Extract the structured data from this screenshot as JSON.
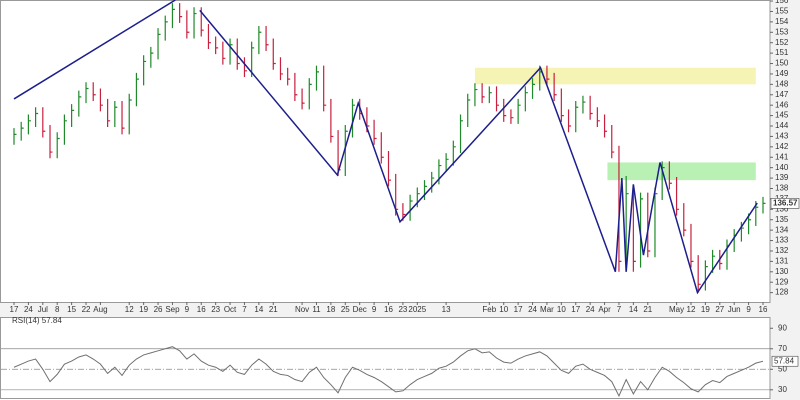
{
  "chart_data": [
    {
      "type": "ohlc",
      "categories": [
        "17",
        null,
        "24",
        null,
        "Jul",
        null,
        "8",
        null,
        "15",
        null,
        "22",
        null,
        "Aug",
        null,
        null,
        null,
        "12",
        null,
        "19",
        null,
        "26",
        null,
        "Sep",
        null,
        "9",
        null,
        "16",
        null,
        "23",
        null,
        "Oct",
        null,
        "7",
        null,
        "14",
        null,
        "21",
        null,
        null,
        null,
        "Nov",
        null,
        "11",
        null,
        "18",
        null,
        "25",
        null,
        "Dec",
        null,
        "9",
        null,
        "16",
        null,
        "23",
        null,
        "2025",
        null,
        null,
        null,
        "13",
        null,
        null,
        null,
        null,
        null,
        "Feb",
        null,
        "10",
        null,
        "17",
        null,
        "24",
        null,
        "Mar",
        null,
        "10",
        null,
        "17",
        null,
        "24",
        null,
        "Apr",
        null,
        "7",
        null,
        "14",
        null,
        "21",
        null,
        null,
        null,
        "May",
        null,
        "12",
        null,
        "19",
        null,
        "27",
        null,
        "Jun",
        null,
        "9",
        null,
        "16"
      ],
      "high": [
        143.8,
        144.4,
        145.1,
        145.8,
        145.8,
        144.1,
        143.4,
        145.1,
        146.1,
        147.4,
        148.2,
        148.2,
        147.6,
        146.6,
        146.4,
        146.4,
        147.1,
        149.1,
        150.8,
        151.6,
        153.4,
        154.6,
        155.8,
        155.8,
        155.1,
        155.4,
        155.4,
        153.8,
        152.6,
        152.1,
        152.4,
        152.4,
        150.6,
        152.1,
        153.6,
        153.6,
        152.4,
        150.6,
        149.6,
        149.1,
        147.6,
        148.6,
        149.8,
        149.8,
        146.6,
        143.6,
        144.1,
        146.6,
        146.6,
        145.8,
        144.6,
        143.4,
        141.6,
        139.4,
        136.6,
        137.4,
        138.1,
        138.8,
        139.6,
        140.8,
        141.4,
        142.6,
        145.1,
        147.1,
        148.1,
        148.1,
        147.8,
        147.8,
        146.6,
        145.6,
        146.6,
        147.8,
        148.6,
        149.8,
        149.8,
        149.1,
        147.6,
        145.6,
        146.4,
        146.9,
        146.9,
        145.8,
        145.1,
        144.1,
        142.1,
        139.2,
        138.1,
        137.6,
        137.6,
        138.1,
        140.6,
        140.6,
        139.1,
        136.6,
        134.6,
        131.6,
        131.1,
        132.1,
        132.1,
        133.1,
        134.1,
        134.8,
        135.6,
        136.8,
        137.2
      ],
      "low": [
        142.2,
        142.6,
        143.2,
        143.9,
        142.9,
        140.9,
        140.9,
        142.2,
        143.9,
        144.9,
        146.2,
        146.4,
        145.4,
        143.9,
        143.9,
        143.2,
        143.2,
        145.9,
        147.9,
        149.6,
        150.4,
        152.2,
        153.4,
        153.9,
        152.4,
        152.4,
        152.6,
        151.4,
        150.9,
        149.9,
        149.9,
        149.4,
        148.7,
        148.7,
        150.9,
        151.2,
        149.4,
        148.4,
        147.9,
        146.4,
        145.6,
        145.6,
        147.4,
        145.4,
        142.4,
        139.2,
        139.2,
        142.9,
        144.6,
        143.4,
        142.2,
        140.4,
        138.2,
        135.4,
        134.9,
        134.9,
        136.2,
        136.9,
        137.6,
        138.4,
        139.6,
        140.2,
        141.4,
        143.9,
        145.9,
        146.2,
        146.2,
        145.4,
        144.4,
        144.2,
        144.2,
        145.4,
        146.6,
        147.4,
        147.9,
        146.4,
        144.4,
        143.4,
        143.4,
        145.2,
        144.6,
        143.9,
        142.9,
        140.9,
        130.0,
        130.4,
        130.0,
        130.4,
        131.4,
        131.4,
        136.9,
        137.9,
        135.4,
        133.4,
        130.4,
        128.0,
        128.2,
        129.9,
        130.2,
        130.2,
        131.9,
        132.9,
        133.6,
        134.4,
        135.6
      ],
      "close": [
        143.2,
        143.8,
        144.5,
        145.2,
        143.5,
        141.5,
        142.8,
        144.5,
        145.5,
        146.8,
        147.6,
        147.0,
        146.0,
        144.5,
        145.8,
        143.8,
        146.5,
        148.5,
        150.2,
        151.0,
        152.8,
        154.0,
        155.2,
        154.5,
        153.0,
        154.8,
        153.2,
        152.0,
        151.5,
        150.5,
        151.8,
        150.0,
        149.3,
        151.5,
        153.0,
        151.8,
        150.0,
        149.0,
        148.5,
        147.0,
        146.2,
        148.0,
        149.2,
        146.0,
        143.0,
        139.8,
        143.5,
        146.0,
        145.2,
        144.0,
        142.8,
        141.0,
        138.8,
        136.0,
        135.5,
        136.8,
        137.5,
        138.2,
        139.0,
        140.2,
        140.8,
        142.0,
        144.5,
        146.5,
        147.5,
        146.8,
        147.2,
        146.0,
        145.0,
        144.8,
        146.0,
        147.2,
        148.0,
        149.2,
        148.5,
        147.0,
        145.0,
        144.0,
        145.8,
        146.3,
        145.2,
        144.5,
        143.5,
        141.5,
        131.0,
        137.5,
        131.0,
        137.0,
        132.0,
        137.5,
        140.0,
        138.5,
        136.0,
        134.0,
        131.0,
        128.8,
        130.5,
        131.5,
        130.8,
        132.5,
        133.5,
        134.2,
        135.0,
        136.2,
        136.57
      ],
      "up_color": "#1f8a2a",
      "down_color": "#c8203f",
      "ylim": [
        127.1,
        156.1
      ],
      "yticks": [
        128,
        129,
        130,
        131,
        132,
        133,
        134,
        135,
        136,
        137,
        138,
        139,
        140,
        141,
        142,
        143,
        144,
        145,
        146,
        147,
        148,
        149,
        150,
        151,
        152,
        153,
        154,
        155,
        156
      ],
      "trendline_color": "#1c1f8c",
      "trendlines": [
        {
          "x": [
            0,
            22.4
          ],
          "y": [
            146.6,
            156.1
          ]
        },
        {
          "x": [
            25.8,
            44.9,
            47.8,
            53.6,
            73.1,
            83.5,
            84.4,
            85.0,
            86.0,
            87.4,
            89.7,
            94.9,
            103.2
          ],
          "y": [
            155.1,
            139.3,
            146.2,
            134.8,
            149.6,
            130.0,
            139.0,
            130.0,
            138.4,
            131.6,
            140.5,
            128.0,
            136.6
          ]
        }
      ],
      "zones": [
        {
          "x": [
            64,
            103
          ],
          "y": [
            148.0,
            149.6
          ],
          "color": "#f6f4b4"
        },
        {
          "x": [
            82.4,
            103
          ],
          "y": [
            138.8,
            140.5
          ],
          "color": "#b9f0b4"
        }
      ]
    },
    {
      "type": "line",
      "title": "RSI(14) 57.84",
      "values": [
        52,
        55,
        58,
        60,
        50,
        38,
        45,
        55,
        58,
        62,
        64,
        60,
        55,
        46,
        52,
        44,
        54,
        60,
        64,
        66,
        68,
        70,
        72,
        68,
        60,
        65,
        58,
        54,
        52,
        48,
        54,
        47,
        45,
        54,
        60,
        55,
        48,
        45,
        44,
        40,
        38,
        47,
        52,
        42,
        35,
        27,
        42,
        52,
        49,
        45,
        42,
        38,
        33,
        28,
        29,
        35,
        40,
        43,
        46,
        51,
        53,
        57,
        63,
        68,
        70,
        66,
        67,
        61,
        57,
        56,
        60,
        63,
        65,
        67,
        63,
        56,
        49,
        46,
        53,
        55,
        50,
        47,
        44,
        38,
        24,
        40,
        26,
        38,
        30,
        42,
        52,
        48,
        42,
        37,
        31,
        28,
        35,
        39,
        37,
        43,
        46,
        49,
        52,
        56,
        57.84
      ],
      "color": "#707070",
      "ylim": [
        22,
        100
      ],
      "yticks": [
        30,
        50,
        70,
        90
      ],
      "levels": [
        70,
        50,
        30
      ],
      "level_styles": [
        "solid",
        "dashdot",
        "solid"
      ]
    }
  ]
}
